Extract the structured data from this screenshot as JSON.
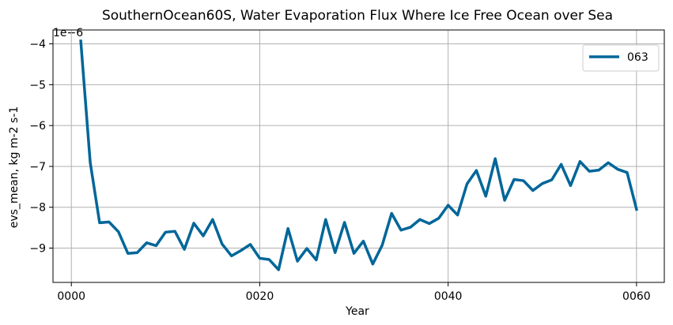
{
  "chart_data": {
    "type": "line",
    "title": "SouthernOcean60S, Water Evaporation Flux Where Ice Free Ocean over Sea",
    "xlabel": "Year",
    "ylabel": "evs_mean, kg m-2 s-1",
    "y_offset_label": "1e−6",
    "xlim": [
      -1.95,
      62.95
    ],
    "ylim": [
      -9.84,
      -3.66
    ],
    "x_ticks": [
      0,
      20,
      40,
      60
    ],
    "x_tick_labels": [
      "0000",
      "0020",
      "0040",
      "0060"
    ],
    "y_ticks": [
      -9,
      -8,
      -7,
      -6,
      -5,
      -4
    ],
    "y_tick_labels": [
      "−9",
      "−8",
      "−7",
      "−6",
      "−5",
      "−4"
    ],
    "grid": true,
    "legend_position": "upper-right",
    "series": [
      {
        "name": "063",
        "color": "#006699",
        "x": [
          1,
          2,
          3,
          4,
          5,
          6,
          7,
          8,
          9,
          10,
          11,
          12,
          13,
          14,
          15,
          16,
          17,
          18,
          19,
          20,
          21,
          22,
          23,
          24,
          25,
          26,
          27,
          28,
          29,
          30,
          31,
          32,
          33,
          34,
          35,
          36,
          37,
          38,
          39,
          40,
          41,
          42,
          43,
          44,
          45,
          46,
          47,
          48,
          49,
          50,
          51,
          52,
          53,
          54,
          55,
          56,
          57,
          58,
          59,
          60
        ],
        "values": [
          -3.93,
          -6.9,
          -8.38,
          -8.36,
          -8.6,
          -9.13,
          -9.11,
          -8.87,
          -8.94,
          -8.61,
          -8.59,
          -9.03,
          -8.39,
          -8.7,
          -8.3,
          -8.9,
          -9.19,
          -9.06,
          -8.91,
          -9.25,
          -9.28,
          -9.53,
          -8.52,
          -9.32,
          -9.01,
          -9.29,
          -8.3,
          -9.11,
          -8.37,
          -9.13,
          -8.83,
          -9.39,
          -8.93,
          -8.15,
          -8.56,
          -8.49,
          -8.3,
          -8.4,
          -8.27,
          -7.95,
          -8.19,
          -7.43,
          -7.1,
          -7.73,
          -6.81,
          -7.83,
          -7.32,
          -7.35,
          -7.59,
          -7.42,
          -7.33,
          -6.95,
          -7.47,
          -6.88,
          -7.12,
          -7.09,
          -6.91,
          -7.07,
          -7.15,
          -8.05
        ]
      }
    ]
  }
}
